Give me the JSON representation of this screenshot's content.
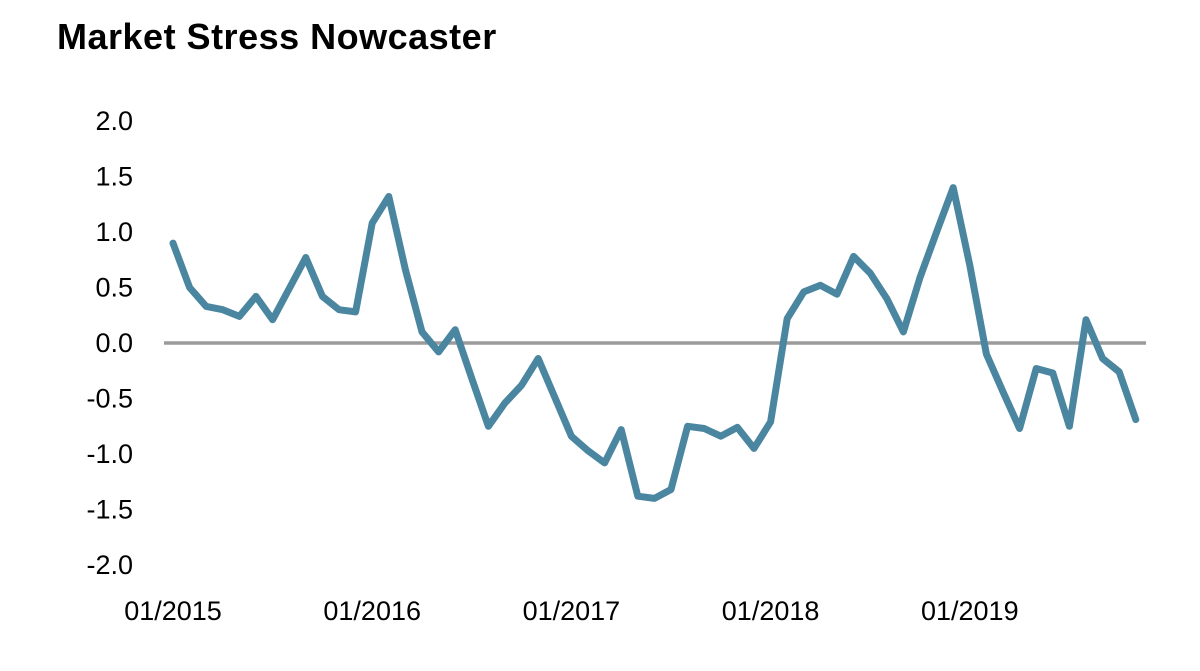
{
  "title": "Market Stress Nowcaster",
  "colors": {
    "line": "#4b86a1",
    "zero_line": "#9b9b9b",
    "text": "#000000",
    "background": "#ffffff"
  },
  "chart_data": {
    "type": "line",
    "title": "Market Stress Nowcaster",
    "xlabel": "",
    "ylabel": "",
    "ylim": [
      -2.0,
      2.0
    ],
    "grid": false,
    "legend_position": "none",
    "zero_baseline": true,
    "y_tick_labels": [
      "2.0",
      "1.5",
      "1.0",
      "0.5",
      "0.0",
      "-0.5",
      "-1.0",
      "-1.5",
      "-2.0"
    ],
    "x_tick_labels": [
      "01/2015",
      "01/2016",
      "01/2017",
      "01/2018",
      "01/2019"
    ],
    "x_tick_month_index": [
      0,
      12,
      24,
      36,
      48
    ],
    "x": [
      "01/2015",
      "02/2015",
      "03/2015",
      "04/2015",
      "05/2015",
      "06/2015",
      "07/2015",
      "08/2015",
      "09/2015",
      "10/2015",
      "11/2015",
      "12/2015",
      "01/2016",
      "02/2016",
      "03/2016",
      "04/2016",
      "05/2016",
      "06/2016",
      "07/2016",
      "08/2016",
      "09/2016",
      "10/2016",
      "11/2016",
      "12/2016",
      "01/2017",
      "02/2017",
      "03/2017",
      "04/2017",
      "05/2017",
      "06/2017",
      "07/2017",
      "08/2017",
      "09/2017",
      "10/2017",
      "11/2017",
      "12/2017",
      "01/2018",
      "02/2018",
      "03/2018",
      "04/2018",
      "05/2018",
      "06/2018",
      "07/2018",
      "08/2018",
      "09/2018",
      "10/2018",
      "11/2018",
      "12/2018",
      "01/2019",
      "02/2019",
      "03/2019",
      "04/2019",
      "05/2019",
      "06/2019",
      "07/2019",
      "08/2019",
      "09/2019",
      "10/2019",
      "11/2019"
    ],
    "series": [
      {
        "name": "Market Stress Nowcaster",
        "values": [
          0.9,
          0.5,
          0.33,
          0.3,
          0.24,
          0.42,
          0.21,
          0.49,
          0.77,
          0.42,
          0.3,
          0.28,
          1.08,
          1.32,
          0.66,
          0.1,
          -0.08,
          0.12,
          -0.32,
          -0.75,
          -0.54,
          -0.38,
          -0.14,
          -0.49,
          -0.84,
          -0.97,
          -1.08,
          -0.78,
          -1.38,
          -1.4,
          -1.32,
          -0.75,
          -0.77,
          -0.84,
          -0.76,
          -0.95,
          -0.71,
          0.22,
          0.46,
          0.52,
          0.44,
          0.78,
          0.63,
          0.4,
          0.1,
          0.59,
          1.0,
          1.4,
          0.7,
          -0.1,
          -0.44,
          -0.77,
          -0.23,
          -0.27,
          -0.75,
          0.21,
          -0.14,
          -0.26,
          -0.69
        ]
      }
    ]
  }
}
